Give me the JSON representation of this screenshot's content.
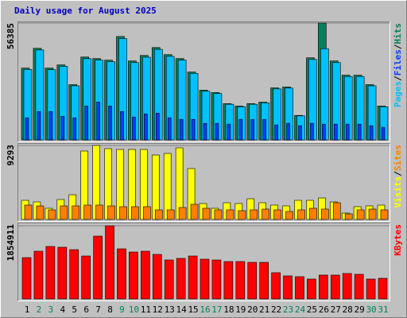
{
  "chart_data": [
    {
      "type": "bar",
      "title": "Daily usage for August 2025",
      "legend_separator": "/",
      "ylim": [
        0,
        56385
      ],
      "yticks": [
        56385
      ],
      "label_color": "#0000c0",
      "series": [
        {
          "name": "Hits",
          "color": "#00805c",
          "values": [
            34670,
            44190,
            34670,
            36190,
            26670,
            40000,
            39240,
            38480,
            49910,
            38100,
            40760,
            44570,
            41150,
            39240,
            32760,
            24000,
            22860,
            17520,
            16380,
            17520,
            18290,
            25140,
            25530,
            11810,
            39620,
            56385,
            38100,
            31240,
            31240,
            26670,
            16380
          ]
        },
        {
          "name": "Files",
          "color": "#0040ff",
          "values": [
            10670,
            13720,
            13720,
            11430,
            10670,
            16380,
            18290,
            16380,
            13720,
            11050,
            12570,
            12950,
            10670,
            9910,
            9910,
            8000,
            8000,
            7620,
            9910,
            9910,
            9910,
            7240,
            8000,
            6860,
            8000,
            7620,
            7620,
            7620,
            7620,
            6860,
            6100
          ]
        },
        {
          "name": "Pages",
          "color": "#00c0ff",
          "values": [
            34000,
            43400,
            33900,
            35500,
            26100,
            39200,
            38500,
            37700,
            48900,
            37300,
            39900,
            43700,
            40300,
            38500,
            32100,
            23500,
            22400,
            17200,
            16000,
            17200,
            17900,
            24600,
            25000,
            11600,
            38800,
            44000,
            37300,
            30600,
            30600,
            26100,
            16000
          ]
        }
      ]
    },
    {
      "type": "bar",
      "ylim": [
        0,
        9293
      ],
      "yticks": [
        9293
      ],
      "series": [
        {
          "name": "Sites",
          "color": "#ff8000",
          "values": [
            1800,
            1700,
            1200,
            1700,
            1700,
            1800,
            1800,
            1700,
            1600,
            1600,
            1600,
            1200,
            1200,
            1500,
            1900,
            1400,
            1200,
            1200,
            1100,
            1200,
            1300,
            1200,
            1000,
            1200,
            1400,
            1300,
            2100,
            700,
            1200,
            1300,
            1200
          ]
        },
        {
          "name": "Visits",
          "color": "#ffff00",
          "values": [
            2398,
            2198,
            1399,
            2498,
            3098,
            8594,
            9293,
            8894,
            8794,
            8794,
            8794,
            8094,
            8294,
            8993,
            6395,
            1998,
            1399,
            2098,
            1998,
            2598,
            2098,
            1799,
            1699,
            2398,
            2398,
            2698,
            2198,
            799,
            1599,
            1699,
            1799
          ]
        }
      ]
    },
    {
      "type": "bar",
      "ylim": [
        0,
        1854911
      ],
      "yticks": [
        1854911
      ],
      "categories": [
        "1",
        "2",
        "3",
        "4",
        "5",
        "6",
        "7",
        "8",
        "9",
        "10",
        "11",
        "12",
        "13",
        "14",
        "15",
        "16",
        "17",
        "18",
        "19",
        "20",
        "21",
        "22",
        "23",
        "24",
        "25",
        "26",
        "27",
        "28",
        "29",
        "30",
        "31"
      ],
      "category_colors": [
        "#000000",
        "#00805c",
        "#00805c",
        "#000000",
        "#000000",
        "#000000",
        "#000000",
        "#000000",
        "#00805c",
        "#00805c",
        "#000000",
        "#000000",
        "#000000",
        "#000000",
        "#000000",
        "#00805c",
        "#00805c",
        "#000000",
        "#000000",
        "#000000",
        "#000000",
        "#000000",
        "#00805c",
        "#00805c",
        "#000000",
        "#000000",
        "#000000",
        "#000000",
        "#000000",
        "#00805c",
        "#00805c"
      ],
      "series": [
        {
          "name": "KBytes",
          "color": "#ff0000",
          "values": [
            1048429,
            1209725,
            1330697,
            1310535,
            1250049,
            1088753,
            1592847,
            1854911,
            1270211,
            1189563,
            1209725,
            1129077,
            987941,
            1028265,
            1088753,
            1008103,
            987941,
            947617,
            947617,
            927455,
            927455,
            665346,
            584698,
            564536,
            504050,
            604860,
            604860,
            645184,
            625022,
            504050,
            524212
          ]
        }
      ]
    }
  ]
}
